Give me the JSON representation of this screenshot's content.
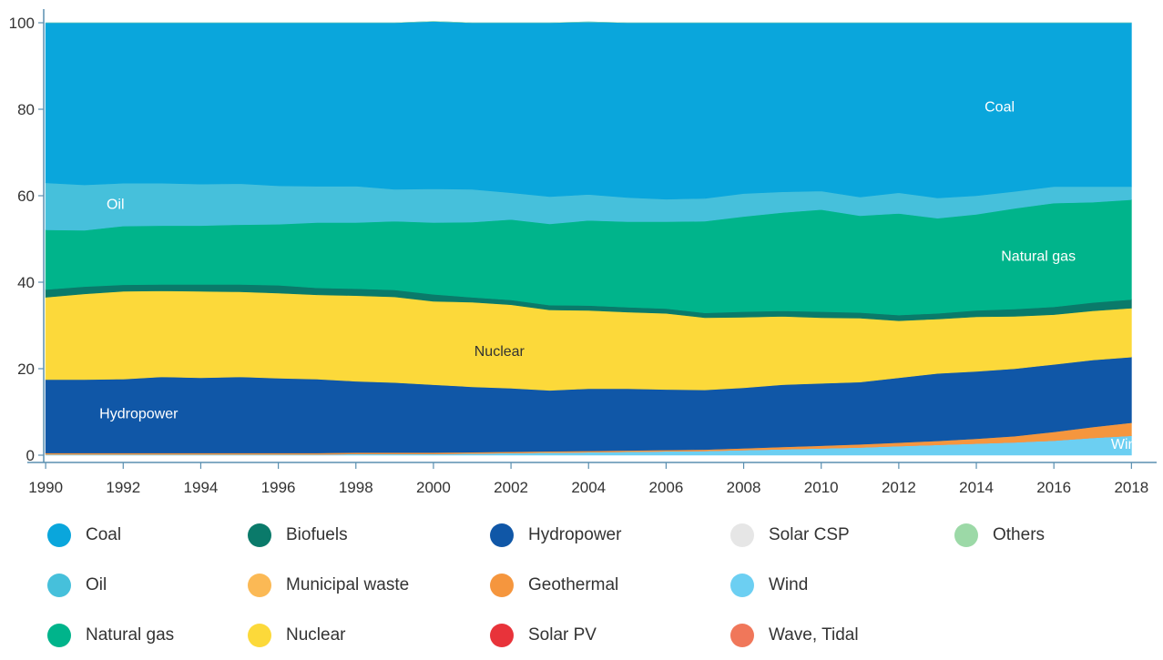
{
  "chart_data": {
    "type": "area",
    "stacked": true,
    "title": "",
    "xlabel": "",
    "ylabel": "",
    "xlim": [
      1989.95,
      2018.25
    ],
    "ylim": [
      0,
      100
    ],
    "yticks": [
      0,
      20,
      40,
      60,
      80,
      100
    ],
    "xticks": [
      1990,
      1992,
      1994,
      1996,
      1998,
      2000,
      2002,
      2004,
      2006,
      2008,
      2010,
      2012,
      2014,
      2016,
      2018
    ],
    "x": [
      1990,
      1991,
      1992,
      1993,
      1994,
      1995,
      1996,
      1997,
      1998,
      1999,
      2000,
      2001,
      2002,
      2003,
      2004,
      2005,
      2006,
      2007,
      2008,
      2009,
      2010,
      2011,
      2012,
      2013,
      2014,
      2015,
      2016,
      2017,
      2018
    ],
    "series": [
      {
        "name": "Wind",
        "color": "#6ccff2",
        "values": [
          0.2,
          0.2,
          0.2,
          0.2,
          0.2,
          0.2,
          0.2,
          0.2,
          0.3,
          0.3,
          0.3,
          0.4,
          0.5,
          0.6,
          0.7,
          0.8,
          0.9,
          1.0,
          1.2,
          1.4,
          1.6,
          1.8,
          2.1,
          2.4,
          2.7,
          3.0,
          3.4,
          4.0,
          4.5
        ]
      },
      {
        "name": "Solar PV",
        "color": "#e8333a",
        "values": [
          0,
          0,
          0,
          0,
          0,
          0,
          0,
          0,
          0,
          0,
          0,
          0,
          0,
          0,
          0,
          0,
          0,
          0,
          0,
          0,
          0,
          0,
          0,
          0,
          0,
          0,
          0,
          0,
          0
        ]
      },
      {
        "name": "Solar CSP",
        "color": "#e6e6e6",
        "values": [
          0,
          0,
          0,
          0,
          0,
          0,
          0,
          0,
          0,
          0,
          0,
          0,
          0,
          0,
          0,
          0,
          0,
          0,
          0,
          0,
          0,
          0,
          0,
          0,
          0,
          0,
          0,
          0,
          0
        ]
      },
      {
        "name": "Wave, Tidal",
        "color": "#f0775a",
        "values": [
          0,
          0,
          0,
          0,
          0,
          0,
          0,
          0,
          0,
          0,
          0,
          0,
          0,
          0,
          0,
          0,
          0,
          0,
          0,
          0,
          0,
          0,
          0,
          0,
          0,
          0,
          0,
          0,
          0
        ]
      },
      {
        "name": "Geothermal",
        "color": "#f5963e",
        "values": [
          0.3,
          0.3,
          0.3,
          0.3,
          0.3,
          0.3,
          0.3,
          0.3,
          0.3,
          0.3,
          0.3,
          0.3,
          0.3,
          0.3,
          0.3,
          0.3,
          0.3,
          0.3,
          0.4,
          0.5,
          0.6,
          0.7,
          0.8,
          0.9,
          1.1,
          1.4,
          2.0,
          2.5,
          3.0
        ]
      },
      {
        "name": "Municipal waste",
        "color": "#fbb955",
        "values": [
          0,
          0,
          0,
          0,
          0,
          0,
          0,
          0,
          0,
          0,
          0,
          0,
          0,
          0,
          0,
          0,
          0,
          0,
          0,
          0,
          0,
          0,
          0,
          0,
          0,
          0,
          0,
          0,
          0
        ]
      },
      {
        "name": "Hydropower",
        "color": "#1057a7",
        "values": [
          17.0,
          17.0,
          17.1,
          17.6,
          17.4,
          17.6,
          17.3,
          17.1,
          16.5,
          16.2,
          15.7,
          15.1,
          14.7,
          14.1,
          14.4,
          14.3,
          14.0,
          13.8,
          14.0,
          14.4,
          14.4,
          14.4,
          15.0,
          15.6,
          15.6,
          15.6,
          15.6,
          15.5,
          15.2
        ]
      },
      {
        "name": "Nuclear",
        "color": "#fcd93a",
        "values": [
          19.0,
          19.8,
          20.3,
          19.9,
          20.0,
          19.7,
          19.7,
          19.5,
          19.8,
          19.8,
          19.3,
          19.6,
          19.3,
          18.6,
          18.1,
          17.7,
          17.6,
          16.7,
          16.3,
          15.8,
          15.2,
          14.8,
          13.2,
          12.6,
          12.6,
          12.1,
          11.5,
          11.4,
          11.3
        ]
      },
      {
        "name": "Biofuels",
        "color": "#0a7a6a",
        "values": [
          1.8,
          1.7,
          1.5,
          1.5,
          1.6,
          1.7,
          1.8,
          1.6,
          1.6,
          1.6,
          1.6,
          1.1,
          1.1,
          1.1,
          1.1,
          1.1,
          1.1,
          1.1,
          1.3,
          1.3,
          1.4,
          1.3,
          1.3,
          1.3,
          1.5,
          1.7,
          1.8,
          1.9,
          2.0
        ]
      },
      {
        "name": "Natural gas",
        "color": "#00b48b",
        "values": [
          13.8,
          13.0,
          13.6,
          13.6,
          13.6,
          13.8,
          14.1,
          15.1,
          15.3,
          15.9,
          16.6,
          17.4,
          18.6,
          18.8,
          19.7,
          19.8,
          20.1,
          21.2,
          22.0,
          22.7,
          23.6,
          22.4,
          23.5,
          22.0,
          22.2,
          23.3,
          24.0,
          23.2,
          23.1
        ]
      },
      {
        "name": "Oil",
        "color": "#46c0db",
        "values": [
          10.9,
          10.5,
          9.9,
          9.8,
          9.6,
          9.5,
          8.9,
          8.4,
          8.4,
          7.4,
          7.8,
          7.6,
          6.2,
          6.3,
          6.0,
          5.6,
          5.2,
          5.3,
          5.3,
          4.8,
          4.3,
          4.3,
          4.8,
          4.7,
          4.3,
          3.9,
          3.8,
          3.6,
          3.0
        ]
      },
      {
        "name": "Coal",
        "color": "#0aa6dc",
        "values": [
          37.0,
          37.5,
          37.1,
          37.1,
          37.3,
          37.2,
          37.7,
          37.8,
          37.8,
          38.5,
          38.7,
          38.5,
          39.3,
          40.2,
          39.9,
          40.4,
          40.8,
          40.6,
          39.5,
          39.1,
          38.9,
          40.3,
          39.3,
          40.5,
          40.0,
          39.0,
          37.9,
          37.9,
          37.9
        ]
      },
      {
        "name": "Others",
        "color": "#9cd9a7",
        "values": [
          0,
          0,
          0,
          0,
          0,
          0,
          0,
          0,
          0,
          0,
          0,
          0,
          0,
          0,
          0,
          0,
          0,
          0,
          0,
          0,
          0,
          0,
          0,
          0,
          0,
          0,
          0,
          0,
          0
        ]
      }
    ],
    "annotations": [
      {
        "text": "Coal",
        "x": 2014.6,
        "y": 79.5,
        "color": "#ffffff"
      },
      {
        "text": "Oil",
        "x": 1991.8,
        "y": 57,
        "color": "#ffffff"
      },
      {
        "text": "Natural gas",
        "x": 2015.6,
        "y": 45,
        "color": "#ffffff"
      },
      {
        "text": "Nuclear",
        "x": 2001.7,
        "y": 23,
        "color": "#333333"
      },
      {
        "text": "Hydropower",
        "x": 1992.4,
        "y": 8.5,
        "color": "#ffffff"
      },
      {
        "text": "Wind",
        "x": 2017.9,
        "y": 1.5,
        "color": "#ffffff"
      }
    ],
    "legend": {
      "placement": "bottom",
      "items": [
        {
          "label": "Coal",
          "color": "#0aa6dc"
        },
        {
          "label": "Biofuels",
          "color": "#0a7a6a"
        },
        {
          "label": "Hydropower",
          "color": "#1057a7"
        },
        {
          "label": "Solar CSP",
          "color": "#e6e6e6"
        },
        {
          "label": "Others",
          "color": "#9cd9a7"
        },
        {
          "label": "Oil",
          "color": "#46c0db"
        },
        {
          "label": "Municipal waste",
          "color": "#fbb955"
        },
        {
          "label": "Geothermal",
          "color": "#f5963e"
        },
        {
          "label": "Wind",
          "color": "#6ccff2"
        },
        {
          "label": "Natural gas",
          "color": "#00b48b"
        },
        {
          "label": "Nuclear",
          "color": "#fcd93a"
        },
        {
          "label": "Solar PV",
          "color": "#e8333a"
        },
        {
          "label": "Wave, Tidal",
          "color": "#f0775a"
        }
      ]
    }
  }
}
